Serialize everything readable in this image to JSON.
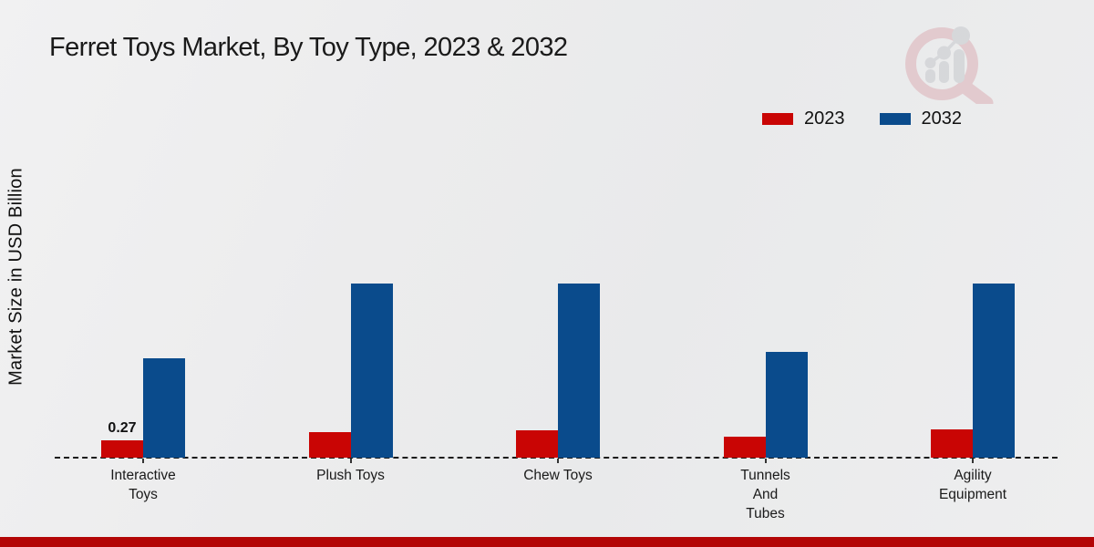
{
  "chart_data": {
    "type": "bar",
    "title": "Ferret Toys Market, By Toy Type, 2023 & 2032",
    "ylabel": "Market Size in USD Billion",
    "xlabel": "",
    "categories": [
      "Interactive Toys",
      "Plush Toys",
      "Chew Toys",
      "Tunnels And Tubes",
      "Agility Equipment"
    ],
    "category_label_lines": [
      [
        "Interactive",
        "Toys"
      ],
      [
        "Plush Toys"
      ],
      [
        "Chew Toys"
      ],
      [
        "Tunnels",
        "And",
        "Tubes"
      ],
      [
        "Agility",
        "Equipment"
      ]
    ],
    "series": [
      {
        "name": "2023",
        "color": "#c90504",
        "values": [
          0.27,
          0.4,
          0.43,
          0.33,
          0.44
        ],
        "point_labels": [
          "0.27",
          "",
          "",
          "",
          ""
        ]
      },
      {
        "name": "2032",
        "color": "#0a4b8c",
        "values": [
          1.55,
          2.71,
          2.71,
          1.65,
          2.71
        ],
        "point_labels": [
          "",
          "",
          "",
          "",
          ""
        ]
      }
    ],
    "ylim": [
      0,
      5
    ],
    "grid": false,
    "legend_position": "top-right",
    "baseline_style": "dashed"
  },
  "colors": {
    "bar_2023": "#c90504",
    "bar_2032": "#0a4b8c",
    "footer_band": "#b30606",
    "background": "#ebecee",
    "text": "#1a1a1a"
  },
  "watermark": {
    "icon": "magnifier-bar-chart-logo"
  }
}
